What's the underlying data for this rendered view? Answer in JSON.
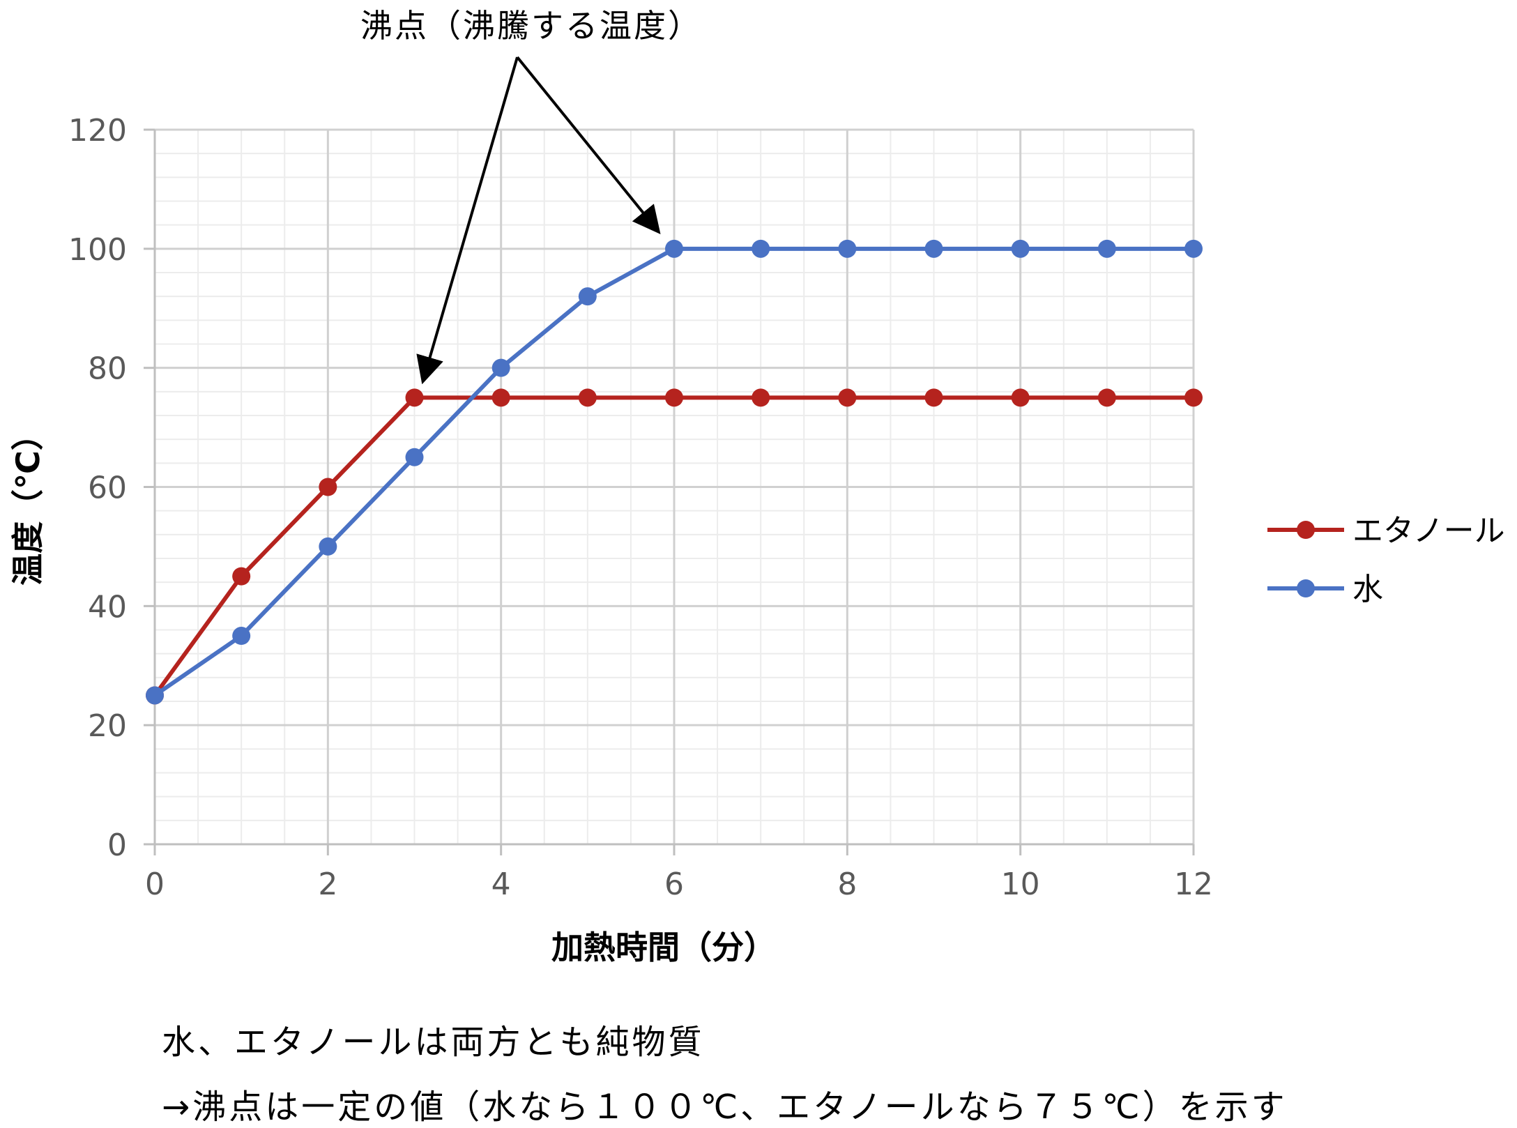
{
  "chart_data": {
    "type": "line",
    "title": "",
    "xlabel": "加熱時間（分）",
    "ylabel": "温度（℃）",
    "xlim": [
      0,
      12
    ],
    "ylim": [
      0,
      120
    ],
    "xticks": [
      0,
      2,
      4,
      6,
      8,
      10,
      12
    ],
    "yticks": [
      0,
      20,
      40,
      60,
      80,
      100,
      120
    ],
    "xtick_labels": [
      "0",
      "2",
      "4",
      "6",
      "8",
      "10",
      "12"
    ],
    "ytick_labels": [
      "0",
      "20",
      "40",
      "60",
      "80",
      "100",
      "120"
    ],
    "grid": true,
    "minor_grid": true,
    "legend_position": "right",
    "x": [
      0,
      1,
      2,
      3,
      4,
      5,
      6,
      7,
      8,
      9,
      10,
      11,
      12
    ],
    "series": [
      {
        "name": "エタノール",
        "color": "#b5231e",
        "values": [
          25,
          45,
          60,
          75,
          75,
          75,
          75,
          75,
          75,
          75,
          75,
          75,
          75
        ]
      },
      {
        "name": "水",
        "color": "#4a72c4",
        "values": [
          25,
          35,
          50,
          65,
          80,
          92,
          100,
          100,
          100,
          100,
          100,
          100,
          100
        ]
      }
    ],
    "annotation": {
      "text": "沸点（沸騰する温度）",
      "targets": [
        {
          "x": 3,
          "y": 75
        },
        {
          "x": 6,
          "y": 100
        }
      ]
    }
  },
  "notes": {
    "line1": "水、エタノールは両方とも純物質",
    "line2": "→沸点は一定の値（水なら１００℃、エタノールなら７５℃）を示す"
  }
}
